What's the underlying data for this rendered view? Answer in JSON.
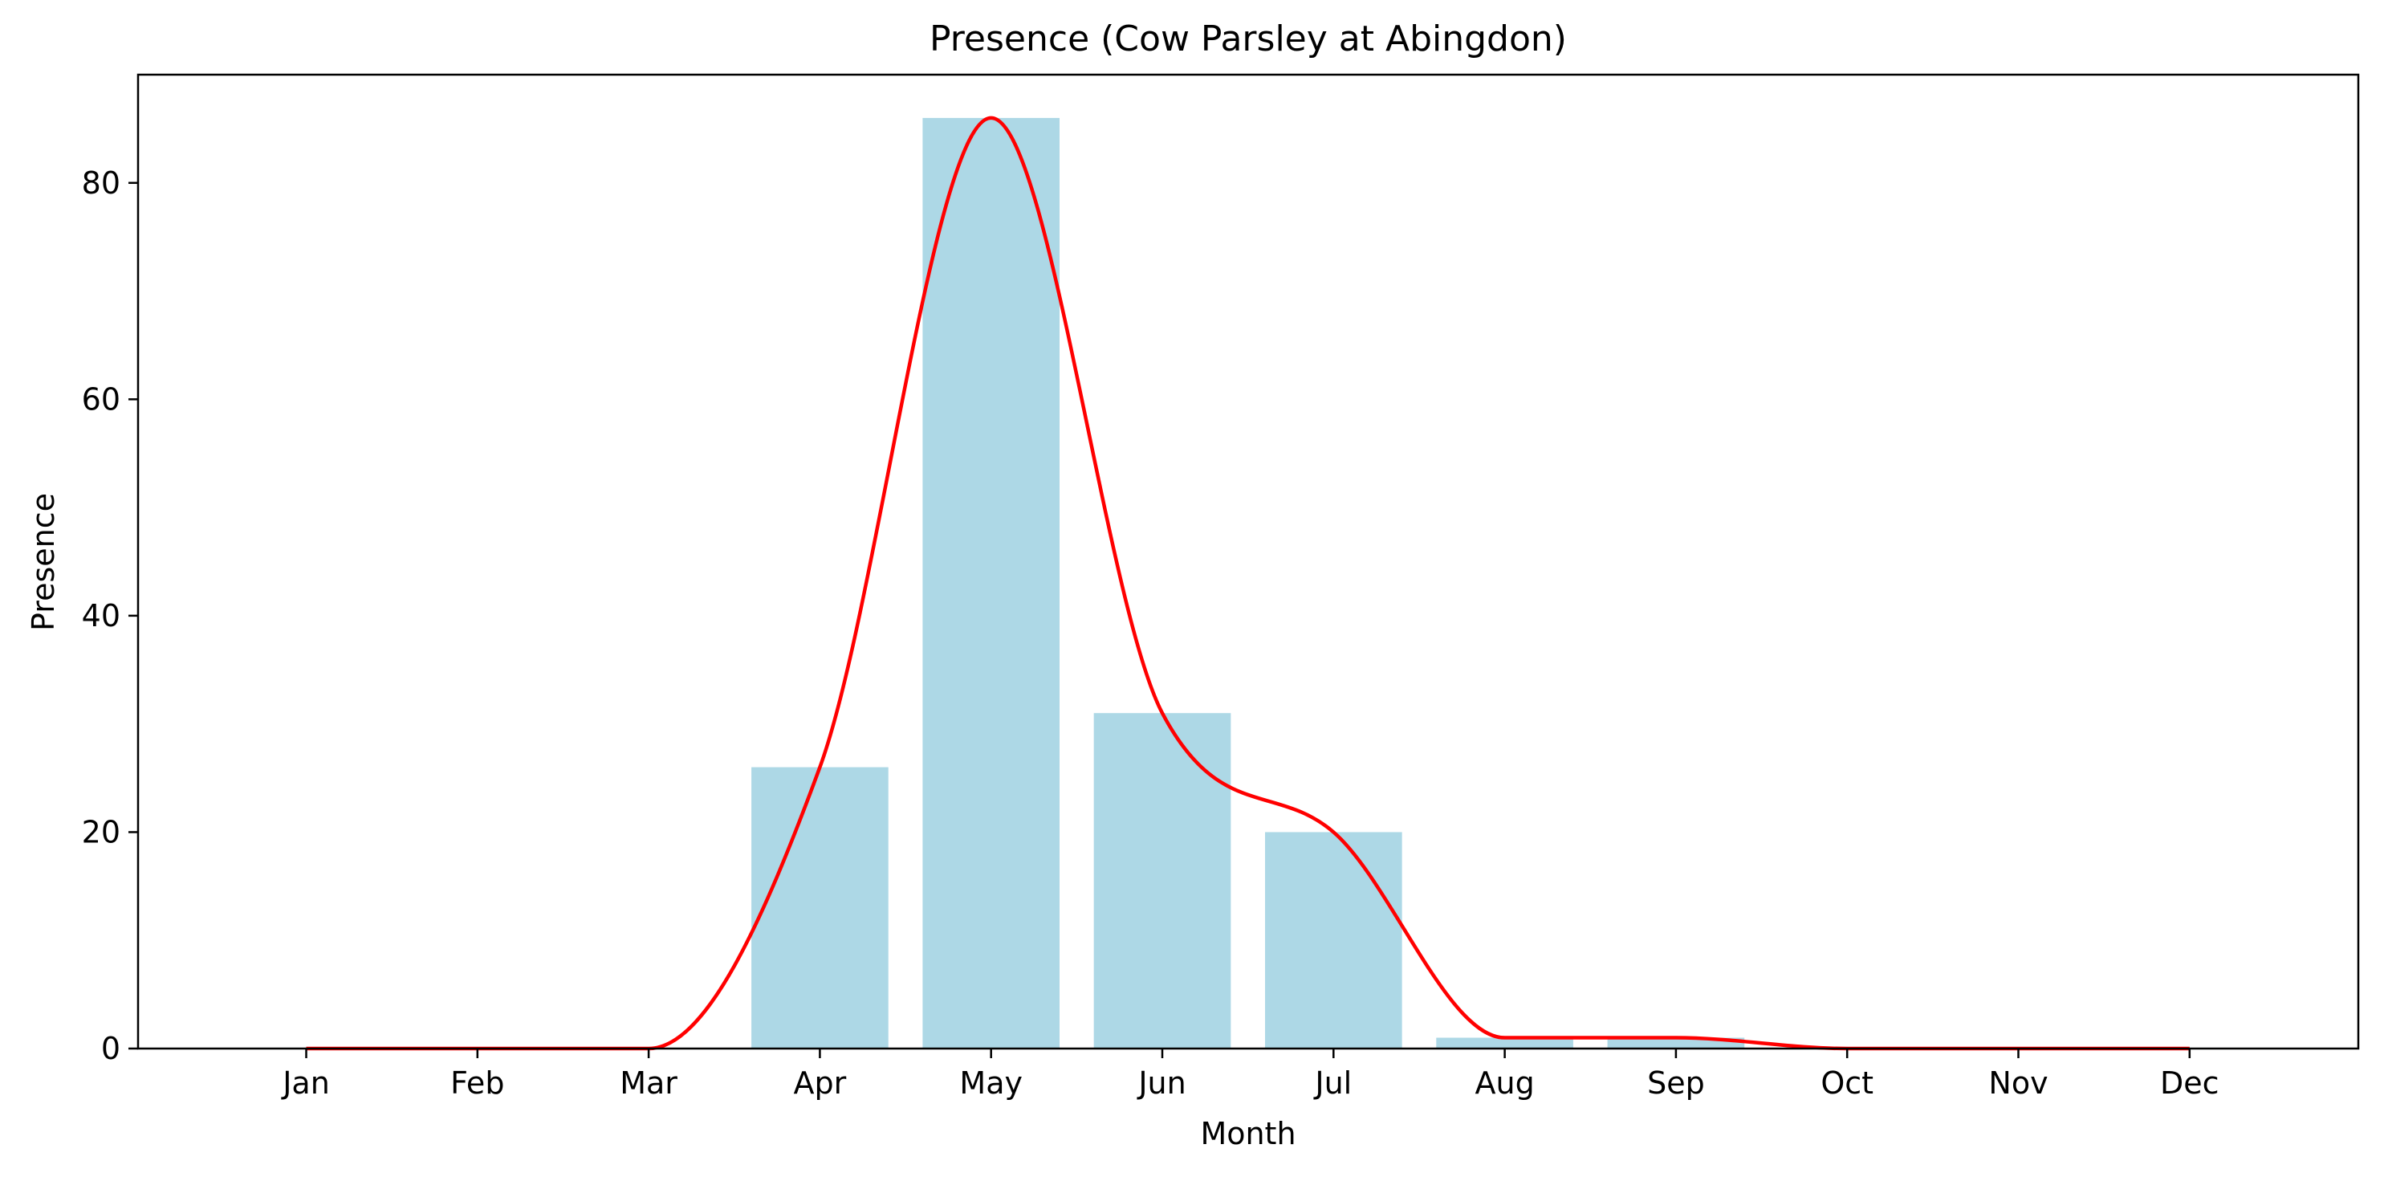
{
  "chart_data": {
    "type": "bar",
    "title": "Presence (Cow Parsley at Abingdon)",
    "xlabel": "Month",
    "ylabel": "Presence",
    "categories": [
      "Jan",
      "Feb",
      "Mar",
      "Apr",
      "May",
      "Jun",
      "Jul",
      "Aug",
      "Sep",
      "Oct",
      "Nov",
      "Dec"
    ],
    "values": [
      0,
      0,
      0,
      26,
      86,
      31,
      20,
      1,
      1,
      0,
      0,
      0
    ],
    "ylim": [
      0,
      90
    ],
    "yticks": [
      0,
      20,
      40,
      60,
      80
    ],
    "overlay": {
      "type": "line",
      "smoothed": true,
      "color": "#ff0000"
    },
    "bar_color": "#add8e6",
    "grid": false,
    "legend": "none"
  }
}
